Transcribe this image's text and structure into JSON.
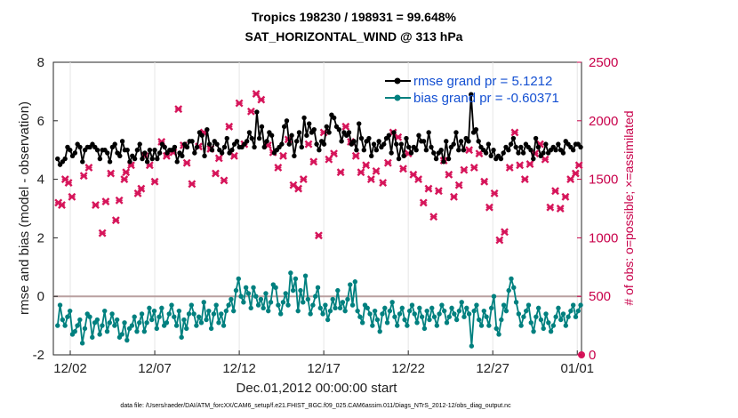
{
  "chart_data": {
    "type": "line",
    "title": "Tropics 198230 / 198931 = 99.648%",
    "subtitle": "SAT_HORIZONTAL_WIND @ 313 hPa",
    "xlabel": "Dec.01,2012 00:00:00 start",
    "ylabel": "rmse and bias (model - observation)",
    "ylabel_right": "# of obs: o=possible; ×=assimilated",
    "footer": "data file: /Users/raeder/DAI/ATM_forcXX/CAM6_setup/f.e21.FHIST_BGC.f09_025.CAM6assim.011/Diags_NTrS_2012-12/obs_diag_output.nc",
    "x_ticks": [
      "12/02",
      "12/07",
      "12/12",
      "12/17",
      "12/22",
      "12/27",
      "01/01"
    ],
    "x_tick_days": [
      1,
      6,
      11,
      16,
      21,
      26,
      31
    ],
    "xlim": [
      0,
      31.25
    ],
    "y_ticks": [
      "-2",
      "0",
      "2",
      "4",
      "6",
      "8"
    ],
    "ylim": [
      -2,
      8
    ],
    "y_right_ticks": [
      "0",
      "500",
      "1000",
      "1500",
      "2000",
      "2500"
    ],
    "ylim_right": [
      0,
      2500
    ],
    "series": [
      {
        "name": "rmse grand pr = 5.1212",
        "color": "#000000",
        "marker": "dot",
        "values": [
          4.7,
          4.5,
          4.6,
          4.7,
          5.1,
          5.0,
          4.8,
          4.9,
          5.2,
          5.1,
          4.6,
          5.0,
          5.1,
          5.1,
          5.2,
          5.1,
          5.0,
          4.7,
          5.0,
          5.0,
          4.9,
          4.6,
          5.1,
          5.2,
          4.9,
          4.8,
          5.3,
          5.0,
          5.0,
          4.6,
          4.8,
          4.7,
          5.0,
          5.2,
          4.7,
          4.9,
          4.6,
          5.0,
          4.7,
          5.0,
          4.7,
          4.9,
          5.2,
          5.1,
          4.9,
          5.0,
          5.0,
          5.1,
          4.6,
          4.9,
          4.8,
          5.2,
          5.1,
          5.3,
          5.3,
          4.9,
          5.1,
          5.6,
          5.5,
          4.8,
          5.7,
          5.2,
          5.0,
          5.3,
          5.2,
          5.0,
          4.9,
          5.1,
          5.4,
          4.9,
          5.0,
          5.2,
          5.3,
          5.1,
          5.1,
          5.2,
          5.3,
          5.6,
          5.4,
          5.1,
          6.3,
          5.4,
          5.8,
          5.1,
          5.3,
          5.6,
          5.5,
          4.9,
          5.0,
          5.1,
          5.2,
          5.8,
          6.0,
          5.2,
          5.5,
          4.8,
          5.3,
          5.6,
          5.1,
          6.1,
          5.5,
          5.9,
          5.6,
          5.7,
          5.2,
          5.0,
          5.3,
          5.2,
          5.8,
          5.6,
          6.2,
          6.1,
          5.8,
          5.7,
          5.3,
          5.6,
          5.5,
          5.6,
          5.2,
          5.3,
          5.0,
          5.9,
          5.4,
          5.0,
          5.3,
          5.4,
          4.8,
          5.2,
          5.0,
          5.3,
          5.1,
          5.2,
          5.4,
          5.5,
          4.9,
          5.6,
          5.2,
          4.7,
          5.2,
          4.8,
          5.4,
          5.1,
          4.9,
          5.1,
          5.0,
          5.5,
          5.3,
          5.3,
          5.0,
          5.6,
          5.1,
          4.9,
          4.7,
          4.9,
          5.0,
          4.6,
          5.3,
          4.7,
          5.1,
          5.2,
          5.6,
          5.0,
          5.3,
          5.0,
          5.4,
          5.3,
          6.9,
          5.6,
          5.7,
          5.3,
          5.1,
          5.0,
          4.9,
          5.2,
          4.8,
          5.0,
          4.7,
          4.8,
          4.7,
          4.9,
          5.1,
          5.0,
          5.2,
          5.4,
          5.1,
          4.9,
          5.1,
          4.9,
          5.2,
          5.1,
          5.0,
          4.7,
          5.4,
          5.1,
          4.8,
          4.9,
          5.2,
          4.9,
          5.0,
          5.1,
          5.0,
          5.2,
          5.0,
          4.9,
          5.3,
          5.2,
          5.1,
          5.0,
          5.2,
          5.2,
          5.1
        ]
      },
      {
        "name": "bias grand pr = -0.60371",
        "color": "#00807f",
        "marker": "dot",
        "values": [
          -1.0,
          -0.3,
          -0.8,
          -1.0,
          -0.7,
          -0.5,
          -1.3,
          -1.2,
          -1.0,
          -0.8,
          -1.6,
          -1.1,
          -0.6,
          -0.7,
          -1.4,
          -0.9,
          -0.8,
          -1.3,
          -1.0,
          -0.5,
          -1.2,
          -0.9,
          -0.6,
          -1.0,
          -0.8,
          -1.4,
          -1.3,
          -0.9,
          -1.5,
          -1.1,
          -1.0,
          -0.7,
          -1.2,
          -0.9,
          -0.6,
          -1.2,
          -0.9,
          -0.4,
          -0.8,
          -0.5,
          -1.1,
          -0.7,
          -0.4,
          -1.0,
          -0.9,
          -0.6,
          -0.3,
          -0.7,
          -1.0,
          -0.5,
          -1.4,
          -0.8,
          -1.1,
          -0.6,
          -0.3,
          -0.6,
          -1.0,
          -0.7,
          -0.9,
          -0.2,
          -0.8,
          -0.5,
          -1.1,
          -0.6,
          -0.3,
          -0.9,
          -0.6,
          -1.0,
          -0.5,
          -0.3,
          -0.1,
          -0.5,
          0.2,
          0.6,
          0.0,
          -0.2,
          0.3,
          0.1,
          -0.4,
          0.3,
          0.0,
          -0.3,
          -0.1,
          -0.4,
          0.1,
          -0.5,
          -0.2,
          0.4,
          0.3,
          -0.3,
          -0.6,
          -0.2,
          0.1,
          -0.3,
          0.8,
          0.2,
          0.6,
          -0.5,
          0.2,
          -0.2,
          0.7,
          -0.1,
          -0.6,
          -0.3,
          0.0,
          0.3,
          -0.4,
          -0.6,
          -0.3,
          -0.8,
          -0.5,
          -0.1,
          -0.4,
          0.2,
          -0.4,
          -0.2,
          -0.5,
          -0.1,
          0.4,
          -0.3,
          0.5,
          -0.5,
          -0.7,
          -0.9,
          -0.3,
          -0.4,
          -0.6,
          -1.0,
          -0.5,
          -0.8,
          -1.2,
          -0.6,
          -0.4,
          -0.9,
          -0.5,
          -0.2,
          -0.7,
          -1.0,
          -0.6,
          -0.4,
          -0.8,
          -1.0,
          -0.5,
          -0.3,
          -0.6,
          -0.9,
          -0.4,
          -0.7,
          -1.1,
          -0.5,
          -0.8,
          -0.4,
          -0.7,
          -1.0,
          -0.6,
          -0.3,
          -0.5,
          -0.9,
          -0.7,
          -0.4,
          -0.6,
          -0.8,
          -0.5,
          -0.2,
          -0.7,
          -0.4,
          -0.6,
          -1.7,
          -0.5,
          -0.3,
          -0.8,
          -1.0,
          -0.5,
          -0.7,
          -1.0,
          -0.4,
          0.0,
          -1.1,
          -1.3,
          -0.8,
          -0.3,
          -0.5,
          0.2,
          0.6,
          0.3,
          -0.2,
          -0.6,
          -1.0,
          -0.7,
          -0.5,
          -0.3,
          -0.9,
          -1.2,
          -0.7,
          -0.4,
          -0.8,
          -1.1,
          -0.6,
          -0.9,
          -1.2,
          -1.0,
          -0.7,
          -0.4,
          -0.8,
          -0.6,
          -1.0,
          -0.7,
          -0.5,
          -0.3,
          -0.7,
          -0.5,
          -0.3
        ]
      },
      {
        "name": "obs assimilated",
        "color": "#d6155a",
        "marker": "x",
        "count_t": [
          0.3,
          0.5,
          0.7,
          0.9,
          1.1,
          1.8,
          2.1,
          2.5,
          2.9,
          3.1,
          3.4,
          3.7,
          3.9,
          4.2,
          4.3,
          4.6,
          5.0,
          5.2,
          5.4,
          5.7,
          6.0,
          6.4,
          6.7,
          7.1,
          7.4,
          7.7,
          7.9,
          8.2,
          8.6,
          8.9,
          9.3,
          9.6,
          9.8,
          10.1,
          10.4,
          10.7,
          11.0,
          11.3,
          11.7,
          12.0,
          12.3,
          12.7,
          13.0,
          13.3,
          13.6,
          13.9,
          14.2,
          14.5,
          14.8,
          15.1,
          15.4,
          15.7,
          16.0,
          16.3,
          16.6,
          17.0,
          17.3,
          17.6,
          17.9,
          18.2,
          18.5,
          18.8,
          19.1,
          19.5,
          19.8,
          20.1,
          20.4,
          20.7,
          21.0,
          21.3,
          21.6,
          21.9,
          22.2,
          22.5,
          22.8,
          23.1,
          23.4,
          23.7,
          24.0,
          24.3,
          24.6,
          24.9,
          25.2,
          25.5,
          25.8,
          26.1,
          26.4,
          26.7,
          27.0,
          27.3,
          27.6,
          27.9,
          28.2,
          28.5,
          28.8,
          29.1,
          29.4,
          29.7,
          30.0,
          30.3,
          30.6,
          30.9,
          31.1
        ],
        "count_values": [
          1300,
          1280,
          1500,
          1470,
          1350,
          1530,
          1600,
          1280,
          1040,
          1310,
          1550,
          1150,
          1320,
          1500,
          1560,
          1620,
          1380,
          1420,
          1700,
          1620,
          1480,
          1820,
          1700,
          1730,
          2100,
          1790,
          1640,
          1460,
          1780,
          1900,
          1760,
          1550,
          1680,
          1490,
          1950,
          1700,
          2150,
          1800,
          2080,
          2230,
          2180,
          1790,
          1730,
          1600,
          1700,
          1840,
          1450,
          1420,
          1500,
          1800,
          1650,
          1020,
          1900,
          1670,
          1720,
          1560,
          1950,
          1820,
          1700,
          1560,
          1620,
          1500,
          1570,
          1470,
          1640,
          1900,
          1860,
          1590,
          1720,
          1540,
          1500,
          1300,
          1420,
          1180,
          1400,
          1660,
          1540,
          1350,
          1450,
          1580,
          1750,
          1600,
          1720,
          1480,
          1260,
          1380,
          980,
          1050,
          1600,
          1900,
          1620,
          1500,
          1630,
          1720,
          1800,
          1670,
          1260,
          1400,
          1250,
          1350,
          1500,
          1550,
          1620
        ]
      }
    ],
    "legend": {
      "placement": "top-right",
      "entries": [
        "rmse grand pr = 5.1212",
        "bias grand pr = -0.60371"
      ]
    }
  }
}
